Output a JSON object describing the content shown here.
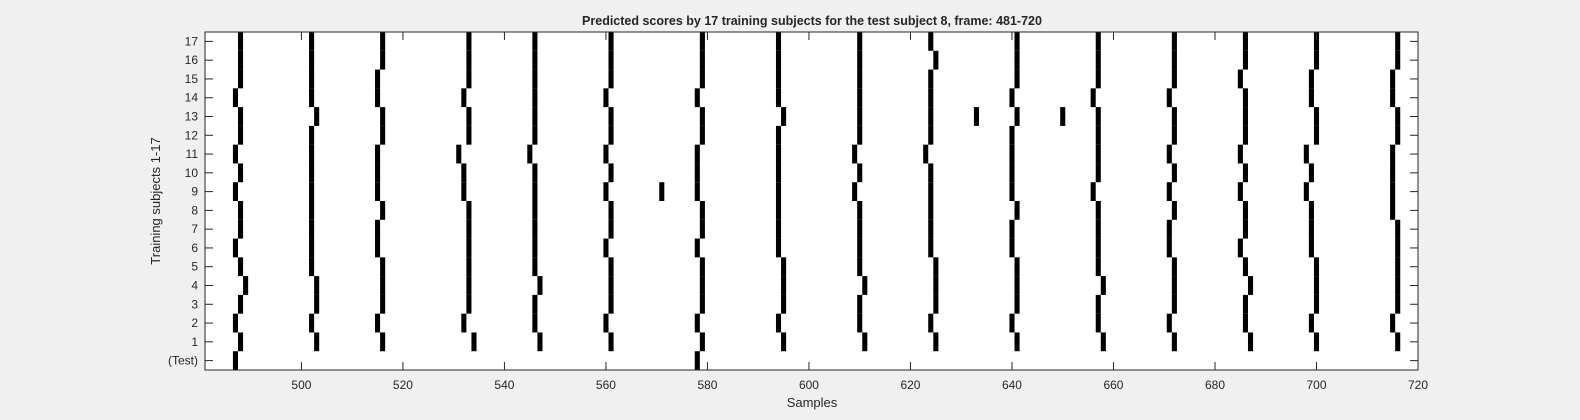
{
  "chart_data": {
    "type": "heatmap",
    "title": "Predicted scores by 17 training subjects for the test subject 8, frame: 481-720",
    "xlabel": "Samples",
    "ylabel": "Training subjects 1-17",
    "xlim": [
      481,
      720
    ],
    "x_ticks": [
      500,
      520,
      540,
      560,
      580,
      600,
      620,
      640,
      660,
      680,
      700,
      720
    ],
    "y_categories": [
      "(Test)",
      "1",
      "2",
      "3",
      "4",
      "5",
      "6",
      "7",
      "8",
      "9",
      "10",
      "11",
      "12",
      "13",
      "14",
      "15",
      "16",
      "17"
    ],
    "colors": {
      "background": "#ffffff",
      "mark": "#000000"
    },
    "rows": [
      {
        "label": "(Test)",
        "x": [
          487,
          578
        ]
      },
      {
        "label": "1",
        "x": [
          488,
          503,
          516,
          534,
          547,
          561,
          579,
          595,
          611,
          625,
          641,
          658,
          672,
          687,
          700,
          716
        ]
      },
      {
        "label": "2",
        "x": [
          487,
          502,
          515,
          532,
          546,
          560,
          578,
          594,
          610,
          624,
          640,
          657,
          671,
          686,
          699,
          715
        ]
      },
      {
        "label": "3",
        "x": [
          488,
          503,
          516,
          533,
          546,
          561,
          579,
          595,
          610,
          625,
          641,
          657,
          672,
          686,
          700,
          716
        ]
      },
      {
        "label": "4",
        "x": [
          489,
          503,
          516,
          533,
          547,
          561,
          579,
          595,
          611,
          625,
          641,
          658,
          672,
          687,
          700,
          716
        ]
      },
      {
        "label": "5",
        "x": [
          488,
          502,
          516,
          533,
          546,
          561,
          579,
          595,
          610,
          625,
          641,
          657,
          672,
          686,
          700,
          716
        ]
      },
      {
        "label": "6",
        "x": [
          487,
          502,
          515,
          533,
          546,
          560,
          578,
          594,
          610,
          624,
          640,
          657,
          671,
          685,
          699,
          716
        ]
      },
      {
        "label": "7",
        "x": [
          488,
          502,
          515,
          533,
          546,
          561,
          579,
          594,
          610,
          624,
          640,
          657,
          671,
          686,
          699,
          716
        ]
      },
      {
        "label": "8",
        "x": [
          488,
          502,
          516,
          533,
          546,
          561,
          579,
          594,
          610,
          624,
          641,
          657,
          672,
          686,
          699,
          715
        ]
      },
      {
        "label": "9",
        "x": [
          487,
          502,
          515,
          532,
          546,
          560,
          571,
          578,
          594,
          609,
          624,
          640,
          656,
          671,
          685,
          698,
          715
        ]
      },
      {
        "label": "10",
        "x": [
          488,
          502,
          515,
          532,
          546,
          561,
          578,
          594,
          610,
          624,
          640,
          657,
          672,
          686,
          699,
          715
        ]
      },
      {
        "label": "11",
        "x": [
          487,
          502,
          515,
          531,
          545,
          560,
          578,
          594,
          609,
          623,
          640,
          657,
          671,
          685,
          698,
          715
        ]
      },
      {
        "label": "12",
        "x": [
          488,
          502,
          516,
          533,
          546,
          561,
          579,
          594,
          610,
          624,
          640,
          657,
          672,
          686,
          700,
          716
        ]
      },
      {
        "label": "13",
        "x": [
          488,
          503,
          516,
          533,
          546,
          561,
          579,
          595,
          610,
          624,
          633,
          641,
          650,
          657,
          672,
          686,
          700,
          716
        ]
      },
      {
        "label": "14",
        "x": [
          487,
          502,
          515,
          532,
          546,
          560,
          578,
          594,
          610,
          624,
          640,
          656,
          671,
          686,
          699,
          715
        ]
      },
      {
        "label": "15",
        "x": [
          488,
          502,
          515,
          533,
          546,
          561,
          579,
          594,
          610,
          624,
          641,
          657,
          672,
          685,
          699,
          715
        ]
      },
      {
        "label": "16",
        "x": [
          488,
          502,
          516,
          533,
          546,
          561,
          579,
          594,
          610,
          625,
          641,
          657,
          672,
          686,
          700,
          716
        ]
      },
      {
        "label": "17",
        "x": [
          488,
          502,
          516,
          533,
          546,
          561,
          579,
          594,
          610,
          624,
          641,
          657,
          672,
          686,
          700,
          716
        ]
      }
    ]
  }
}
